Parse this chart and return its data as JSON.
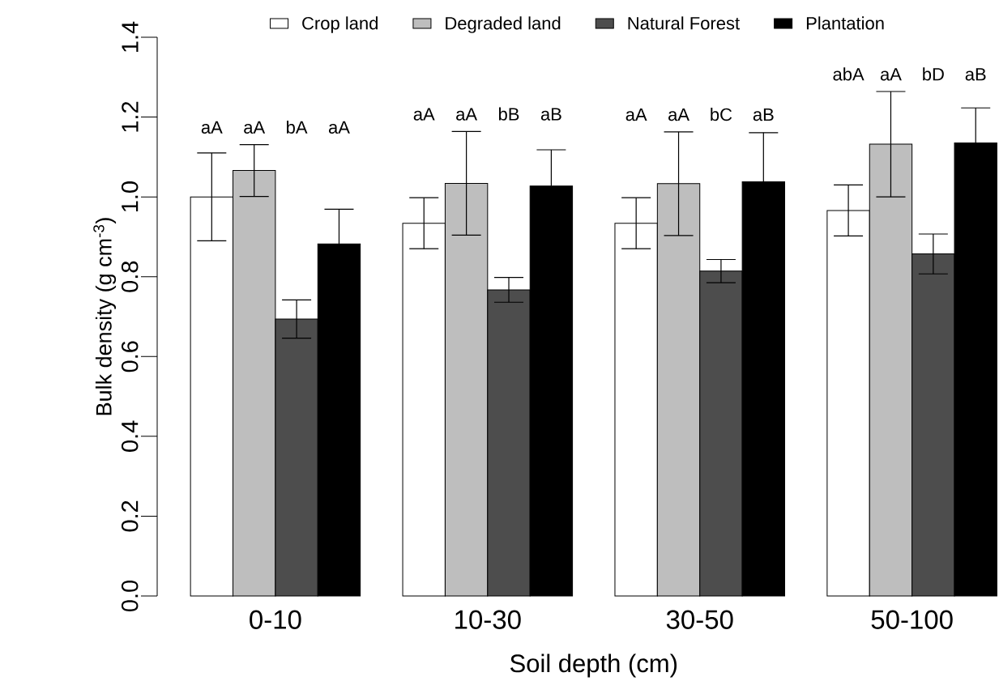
{
  "chart_data": {
    "type": "bar",
    "xlabel": "Soil depth (cm)",
    "ylabel": "Bulk density (g cm$^{-3}$)",
    "categories": [
      "0-10",
      "10-30",
      "30-50",
      "50-100"
    ],
    "series": [
      {
        "name": "Crop land",
        "color": "#ffffff",
        "values": [
          1.0,
          0.934,
          0.934,
          0.966
        ],
        "errors": [
          0.11,
          0.064,
          0.064,
          0.064
        ]
      },
      {
        "name": "Degraded land",
        "color": "#bebebe",
        "values": [
          1.066,
          1.034,
          1.033,
          1.132
        ],
        "errors": [
          0.065,
          0.13,
          0.13,
          0.132
        ]
      },
      {
        "name": "Natural Forest",
        "color": "#4d4d4d",
        "values": [
          0.694,
          0.767,
          0.814,
          0.857
        ],
        "errors": [
          0.048,
          0.031,
          0.029,
          0.05
        ]
      },
      {
        "name": "Plantation",
        "color": "#000000",
        "values": [
          0.882,
          1.027,
          1.038,
          1.135
        ],
        "errors": [
          0.087,
          0.091,
          0.123,
          0.088
        ]
      }
    ],
    "ylim": [
      0,
      1.4
    ],
    "yticks": [
      {
        "value": 0,
        "label": "0.0"
      },
      {
        "value": 0.2,
        "label": "0.2"
      },
      {
        "value": 0.4,
        "label": "0.4"
      },
      {
        "value": 0.6,
        "label": "0.6"
      },
      {
        "value": 0.8,
        "label": "0.8"
      },
      {
        "value": 1.0,
        "label": "1.0"
      },
      {
        "value": 1.2,
        "label": "1.2"
      },
      {
        "value": 1.4,
        "label": "1.4"
      }
    ],
    "legend": "top",
    "annotations": [
      "aA",
      "aA",
      "bA",
      "aA",
      "aA",
      "aA",
      "bB",
      "aB",
      "aA",
      "aA",
      "bC",
      "aB",
      "abA",
      "aA",
      "bD",
      "aB"
    ]
  }
}
